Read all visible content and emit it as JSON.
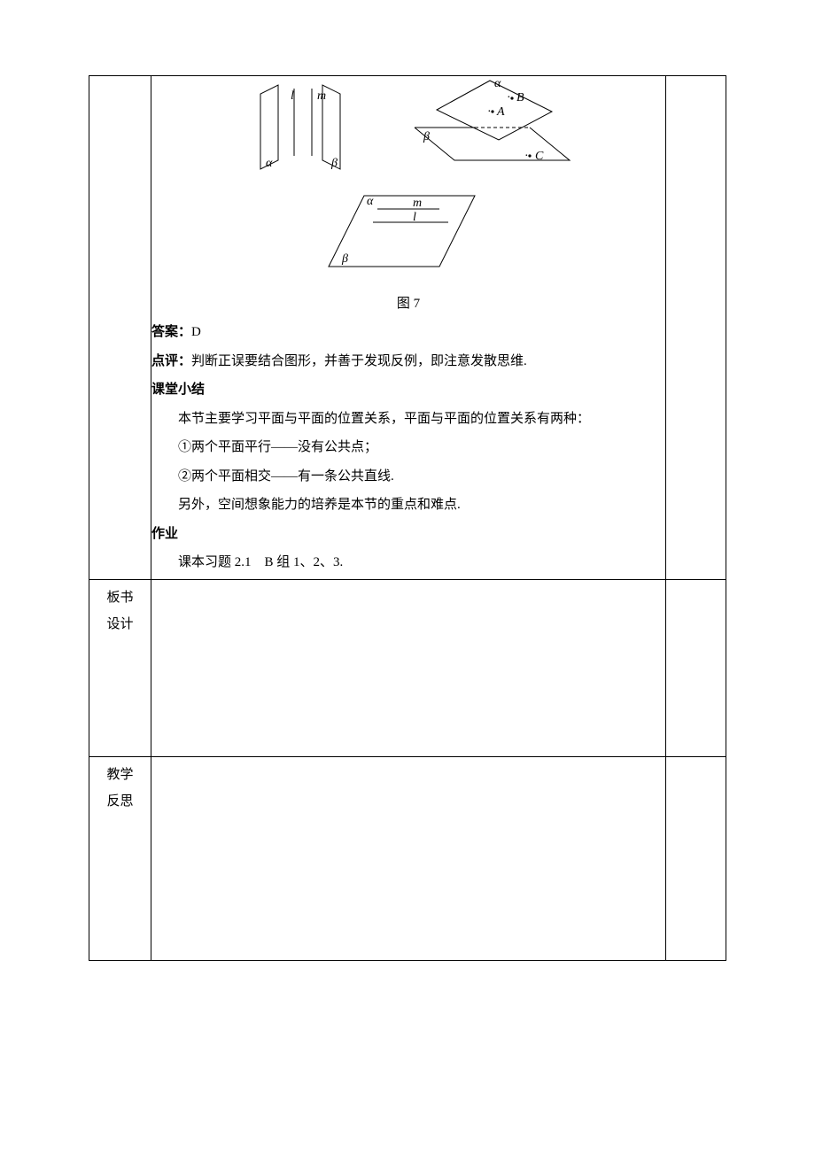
{
  "figure": {
    "caption": "图 7",
    "stroke": "#000000",
    "fill": "#ffffff",
    "font_italic": "italic",
    "labels": {
      "alpha": "α",
      "beta": "β",
      "l": "l",
      "m": "m",
      "A": "A",
      "B": "B",
      "C": "C"
    }
  },
  "content": {
    "answer_prefix": "答案：",
    "answer_value": "D",
    "comment_prefix": "点评：",
    "comment_text": "判断正误要结合图形，并善于发现反例，即注意发散思维.",
    "summary_heading": "课堂小结",
    "summary_text": "本节主要学习平面与平面的位置关系，平面与平面的位置关系有两种：",
    "item1": "①两个平面平行——没有公共点；",
    "item2": "②两个平面相交——有一条公共直线.",
    "extra": "另外，空间想象能力的培养是本节的重点和难点.",
    "homework_heading": "作业",
    "homework_text": "课本习题 2.1　B 组 1、2、3."
  },
  "rows": {
    "design_label": "板书设计",
    "reflect_label": "教学反思"
  },
  "style": {
    "text_color": "#000000",
    "border_color": "#000000",
    "background": "#ffffff",
    "body_fontsize": 15
  }
}
